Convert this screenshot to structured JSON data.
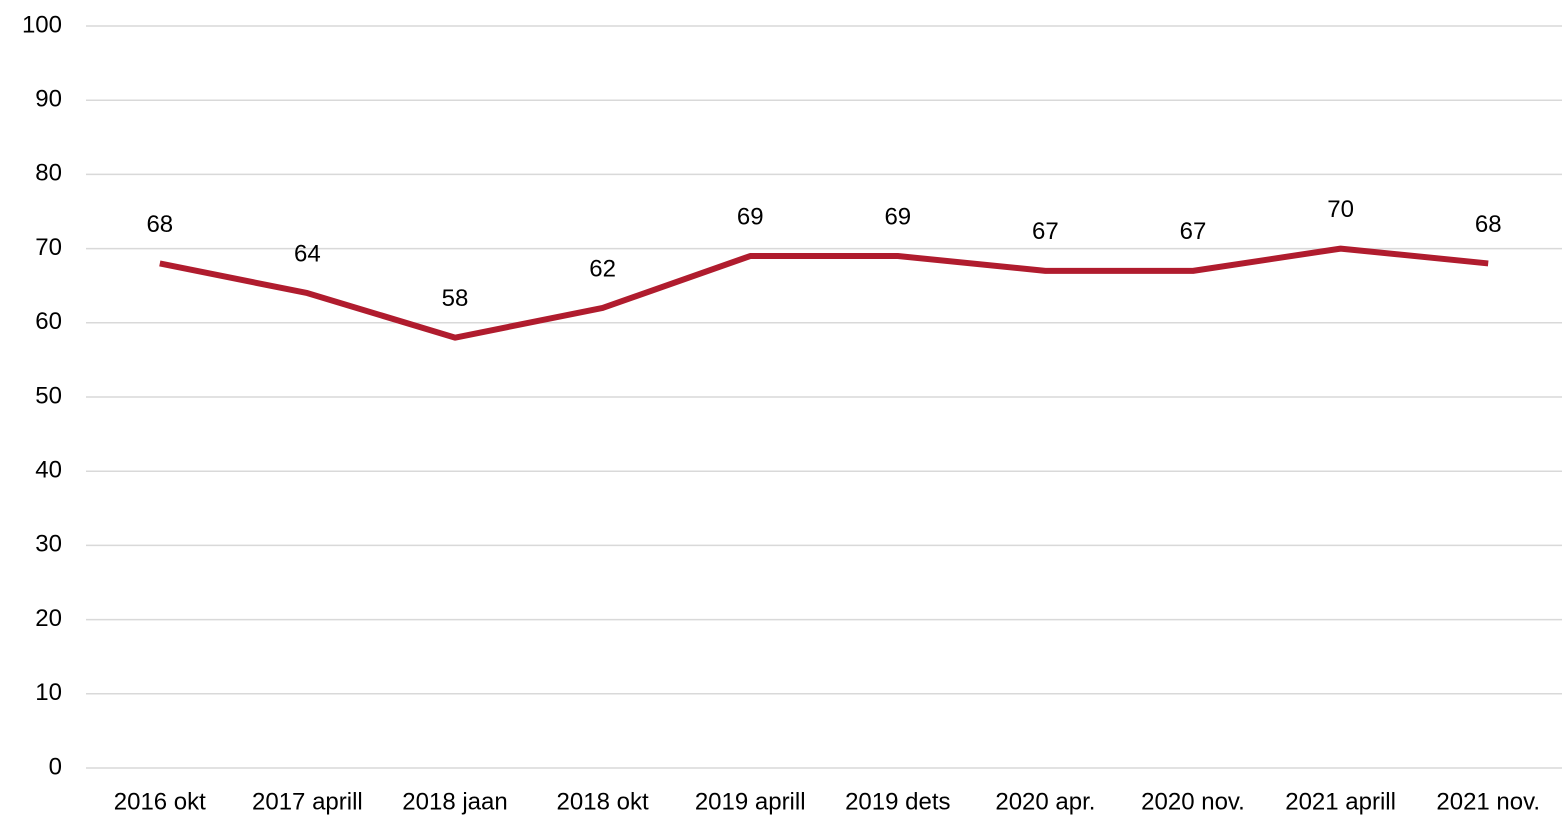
{
  "chart_data": {
    "type": "line",
    "categories": [
      "2016 okt",
      "2017 aprill",
      "2018 jaan",
      "2018 okt",
      "2019 aprill",
      "2019 dets",
      "2020 apr.",
      "2020 nov.",
      "2021 aprill",
      "2021 nov."
    ],
    "values": [
      68,
      64,
      58,
      62,
      69,
      69,
      67,
      67,
      70,
      68
    ],
    "color": "#b01c2e",
    "ylim": [
      0,
      100
    ],
    "yticks": [
      0,
      10,
      20,
      30,
      40,
      50,
      60,
      70,
      80,
      90,
      100
    ],
    "grid": true
  }
}
